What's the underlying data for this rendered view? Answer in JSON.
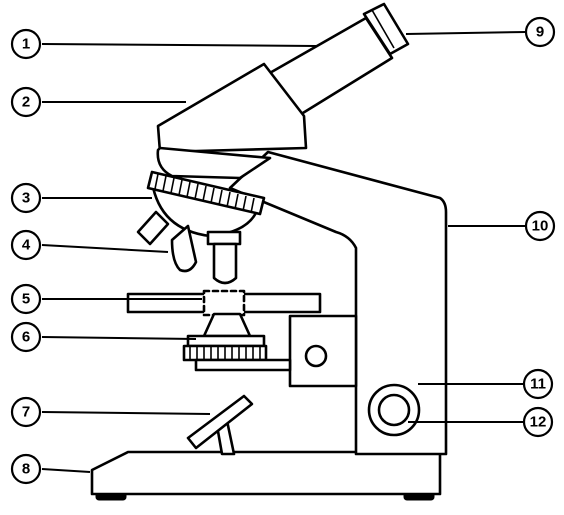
{
  "diagram": {
    "callouts": [
      {
        "id": "1",
        "label": "1"
      },
      {
        "id": "2",
        "label": "2"
      },
      {
        "id": "3",
        "label": "3"
      },
      {
        "id": "4",
        "label": "4"
      },
      {
        "id": "5",
        "label": "5"
      },
      {
        "id": "6",
        "label": "6"
      },
      {
        "id": "7",
        "label": "7"
      },
      {
        "id": "8",
        "label": "8"
      },
      {
        "id": "9",
        "label": "9"
      },
      {
        "id": "10",
        "label": "10"
      },
      {
        "id": "11",
        "label": "11"
      },
      {
        "id": "12",
        "label": "12"
      }
    ]
  }
}
